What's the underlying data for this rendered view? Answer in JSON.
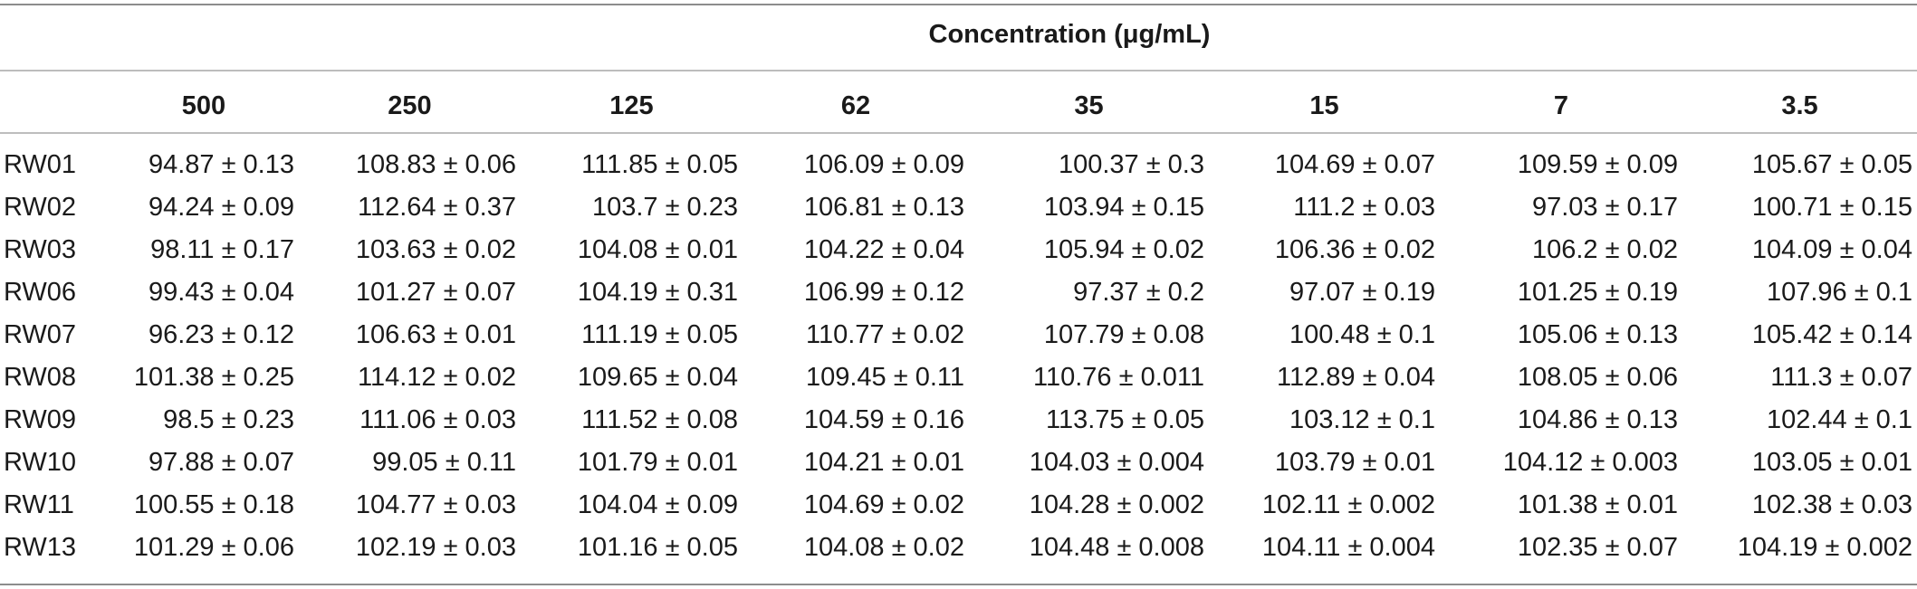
{
  "table": {
    "super_header": "Concentration (μg/mL)",
    "columns": [
      "500",
      "250",
      "125",
      "62",
      "35",
      "15",
      "7",
      "3.5"
    ],
    "rows": [
      {
        "label": "RW01",
        "values": [
          "94.87 ± 0.13",
          "108.83 ± 0.06",
          "111.85 ± 0.05",
          "106.09 ± 0.09",
          "100.37 ± 0.3",
          "104.69 ± 0.07",
          "109.59 ± 0.09",
          "105.67 ± 0.05"
        ]
      },
      {
        "label": "RW02",
        "values": [
          "94.24 ± 0.09",
          "112.64 ± 0.37",
          "103.7 ± 0.23",
          "106.81 ± 0.13",
          "103.94 ± 0.15",
          "111.2 ± 0.03",
          "97.03 ± 0.17",
          "100.71 ± 0.15"
        ]
      },
      {
        "label": "RW03",
        "values": [
          "98.11 ± 0.17",
          "103.63 ± 0.02",
          "104.08 ± 0.01",
          "104.22 ± 0.04",
          "105.94 ± 0.02",
          "106.36 ± 0.02",
          "106.2 ± 0.02",
          "104.09 ± 0.04"
        ]
      },
      {
        "label": "RW06",
        "values": [
          "99.43 ± 0.04",
          "101.27 ± 0.07",
          "104.19 ± 0.31",
          "106.99 ± 0.12",
          "97.37 ± 0.2",
          "97.07 ± 0.19",
          "101.25 ± 0.19",
          "107.96 ± 0.1"
        ]
      },
      {
        "label": "RW07",
        "values": [
          "96.23 ± 0.12",
          "106.63 ± 0.01",
          "111.19 ± 0.05",
          "110.77 ± 0.02",
          "107.79 ± 0.08",
          "100.48 ± 0.1",
          "105.06 ± 0.13",
          "105.42 ± 0.14"
        ]
      },
      {
        "label": "RW08",
        "values": [
          "101.38 ± 0.25",
          "114.12 ± 0.02",
          "109.65 ± 0.04",
          "109.45 ± 0.11",
          "110.76 ± 0.011",
          "112.89 ± 0.04",
          "108.05 ± 0.06",
          "111.3 ± 0.07"
        ]
      },
      {
        "label": "RW09",
        "values": [
          "98.5 ± 0.23",
          "111.06 ± 0.03",
          "111.52 ± 0.08",
          "104.59 ± 0.16",
          "113.75 ± 0.05",
          "103.12 ± 0.1",
          "104.86 ± 0.13",
          "102.44 ± 0.1"
        ]
      },
      {
        "label": "RW10",
        "values": [
          "97.88 ± 0.07",
          "99.05 ± 0.11",
          "101.79 ± 0.01",
          "104.21 ± 0.01",
          "104.03 ± 0.004",
          "103.79 ± 0.01",
          "104.12 ± 0.003",
          "103.05 ± 0.01"
        ]
      },
      {
        "label": "RW11",
        "values": [
          "100.55 ± 0.18",
          "104.77 ± 0.03",
          "104.04 ± 0.09",
          "104.69 ± 0.02",
          "104.28 ± 0.002",
          "102.11 ± 0.002",
          "101.38 ± 0.01",
          "102.38 ± 0.03"
        ]
      },
      {
        "label": "RW13",
        "values": [
          "101.29 ± 0.06",
          "102.19 ± 0.03",
          "101.16 ± 0.05",
          "104.08 ± 0.02",
          "104.48 ± 0.008",
          "104.11 ± 0.004",
          "102.35 ± 0.07",
          "104.19 ± 0.002"
        ]
      }
    ]
  }
}
